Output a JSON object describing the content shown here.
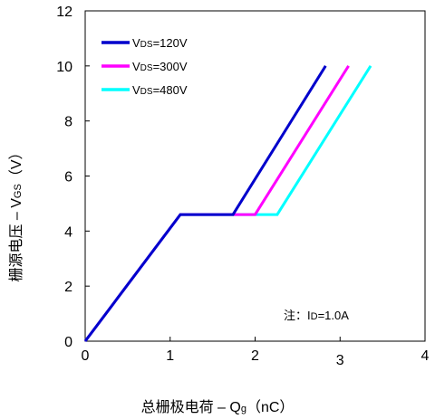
{
  "chart_data": {
    "type": "line",
    "xlabel": {
      "prefix": "总栅极电荷 – Q",
      "sub": "g",
      "suffix": "（nC）"
    },
    "ylabel": {
      "prefix": "栅源电压 – V",
      "sub": "GS",
      "suffix": "（V）"
    },
    "xlim": [
      0,
      4
    ],
    "ylim": [
      0,
      12
    ],
    "xticks": [
      0,
      1,
      2,
      3,
      4
    ],
    "yticks": [
      0,
      2,
      4,
      6,
      8,
      10,
      12
    ],
    "grid": false,
    "legend_position": "top-left",
    "annotation": {
      "prefix": "注：I",
      "sub": "D",
      "suffix": "=1.0A"
    },
    "series": [
      {
        "name": {
          "prefix": "V",
          "sub": "DS",
          "suffix": "=120V"
        },
        "color": "#0000cc",
        "x": [
          0,
          1.12,
          1.74,
          2.83
        ],
        "y": [
          0,
          4.6,
          4.6,
          10
        ]
      },
      {
        "name": {
          "prefix": "V",
          "sub": "DS",
          "suffix": "=300V"
        },
        "color": "#ff00ff",
        "x": [
          0,
          1.12,
          2.0,
          3.1
        ],
        "y": [
          0,
          4.6,
          4.6,
          10
        ]
      },
      {
        "name": {
          "prefix": "V",
          "sub": "DS",
          "suffix": "=480V"
        },
        "color": "#00ffff",
        "x": [
          0,
          1.12,
          2.26,
          3.36
        ],
        "y": [
          0,
          4.6,
          4.6,
          10
        ]
      }
    ]
  }
}
